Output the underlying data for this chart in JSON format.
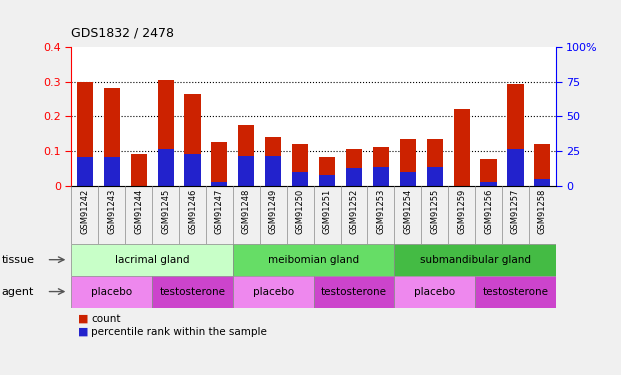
{
  "title": "GDS1832 / 2478",
  "samples": [
    "GSM91242",
    "GSM91243",
    "GSM91244",
    "GSM91245",
    "GSM91246",
    "GSM91247",
    "GSM91248",
    "GSM91249",
    "GSM91250",
    "GSM91251",
    "GSM91252",
    "GSM91253",
    "GSM91254",
    "GSM91255",
    "GSM91259",
    "GSM91256",
    "GSM91257",
    "GSM91258"
  ],
  "count_values": [
    0.3,
    0.28,
    0.09,
    0.305,
    0.265,
    0.125,
    0.175,
    0.14,
    0.12,
    0.082,
    0.105,
    0.11,
    0.135,
    0.135,
    0.222,
    0.078,
    0.293,
    0.12
  ],
  "percentile_values": [
    0.082,
    0.082,
    0.0,
    0.105,
    0.09,
    0.01,
    0.085,
    0.085,
    0.04,
    0.03,
    0.05,
    0.055,
    0.038,
    0.055,
    0.0,
    0.01,
    0.105,
    0.02
  ],
  "ylim_left": [
    0,
    0.4
  ],
  "ylim_right": [
    0,
    100
  ],
  "yticks_left": [
    0,
    0.1,
    0.2,
    0.3,
    0.4
  ],
  "yticks_right": [
    0,
    25,
    50,
    75,
    100
  ],
  "bar_color_red": "#cc2200",
  "bar_color_blue": "#2222cc",
  "plot_bg": "#ffffff",
  "fig_bg": "#f0f0f0",
  "xtick_bg": "#c8c8c8",
  "tissue_groups": [
    {
      "label": "lacrimal gland",
      "start": 0,
      "end": 6,
      "color": "#c8ffc8"
    },
    {
      "label": "meibomian gland",
      "start": 6,
      "end": 12,
      "color": "#66dd66"
    },
    {
      "label": "submandibular gland",
      "start": 12,
      "end": 18,
      "color": "#44bb44"
    }
  ],
  "agent_groups": [
    {
      "label": "placebo",
      "start": 0,
      "end": 3,
      "color": "#ee88ee"
    },
    {
      "label": "testosterone",
      "start": 3,
      "end": 6,
      "color": "#cc44cc"
    },
    {
      "label": "placebo",
      "start": 6,
      "end": 9,
      "color": "#ee88ee"
    },
    {
      "label": "testosterone",
      "start": 9,
      "end": 12,
      "color": "#cc44cc"
    },
    {
      "label": "placebo",
      "start": 12,
      "end": 15,
      "color": "#ee88ee"
    },
    {
      "label": "testosterone",
      "start": 15,
      "end": 18,
      "color": "#cc44cc"
    }
  ]
}
